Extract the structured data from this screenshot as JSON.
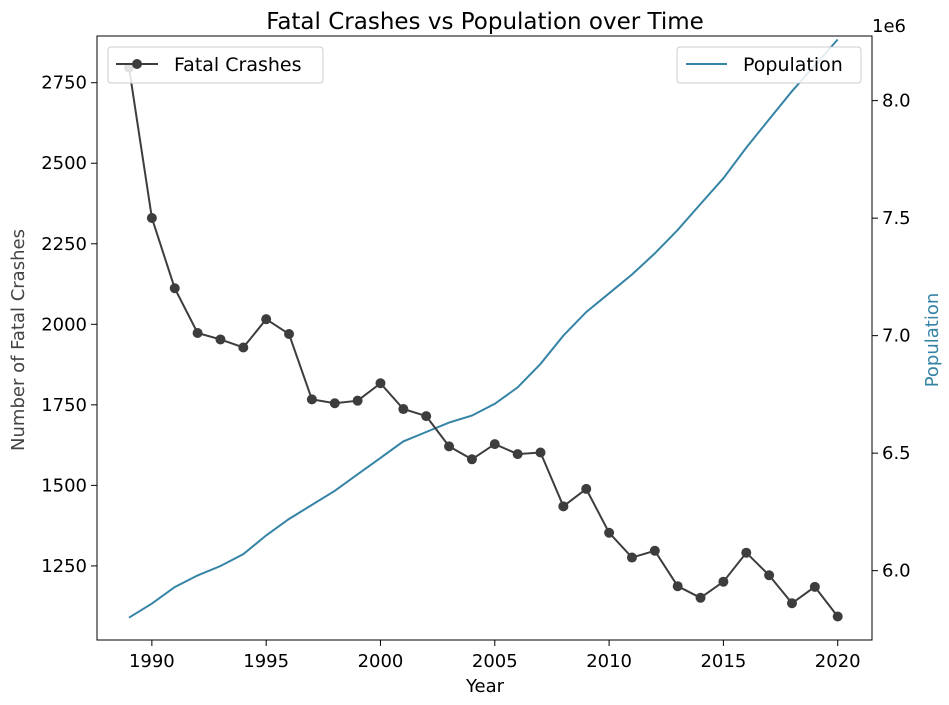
{
  "chart_data": {
    "type": "line",
    "title": "Fatal Crashes vs Population over Time",
    "xlabel": "Year",
    "ylabel_left": "Number of Fatal Crashes",
    "ylabel_right": "Population",
    "right_axis_multiplier": "1e6",
    "xlim": [
      1987.6,
      2021.5
    ],
    "ylim_left": [
      1020,
      2895
    ],
    "ylim_right": [
      5.705,
      8.275
    ],
    "x_ticks": [
      1990,
      1995,
      2000,
      2005,
      2010,
      2015,
      2020
    ],
    "y_left_ticks": [
      1250,
      1500,
      1750,
      2000,
      2250,
      2500,
      2750
    ],
    "y_right_ticks": [
      6.0,
      6.5,
      7.0,
      7.5,
      8.0
    ],
    "grid": false,
    "colors": {
      "fatal": "#3d3d3d",
      "population": "#3584a6",
      "population_label": "#3584a6"
    },
    "x": [
      1989,
      1990,
      1991,
      1992,
      1993,
      1994,
      1995,
      1996,
      1997,
      1998,
      1999,
      2000,
      2001,
      2002,
      2003,
      2004,
      2005,
      2006,
      2007,
      2008,
      2009,
      2010,
      2011,
      2012,
      2013,
      2014,
      2015,
      2016,
      2017,
      2018,
      2019,
      2020
    ],
    "series": [
      {
        "name": "Fatal Crashes",
        "axis": "left",
        "marker": "circle",
        "legend_position": "upper-left",
        "values": [
          2797,
          2330,
          2112,
          1973,
          1953,
          1928,
          2016,
          1970,
          1767,
          1755,
          1763,
          1817,
          1737,
          1715,
          1621,
          1581,
          1628,
          1597,
          1602,
          1435,
          1489,
          1353,
          1276,
          1297,
          1187,
          1151,
          1201,
          1291,
          1221,
          1134,
          1185,
          1093
        ]
      },
      {
        "name": "Population",
        "axis": "right",
        "marker": "none",
        "legend_position": "upper-right",
        "values": [
          5.8,
          5.86,
          5.93,
          5.98,
          6.02,
          6.07,
          6.15,
          6.22,
          6.28,
          6.34,
          6.41,
          6.48,
          6.55,
          6.59,
          6.63,
          6.66,
          6.71,
          6.78,
          6.88,
          7.0,
          7.1,
          7.18,
          7.26,
          7.35,
          7.45,
          7.56,
          7.67,
          7.8,
          7.92,
          8.04,
          8.15,
          8.26
        ]
      }
    ]
  }
}
